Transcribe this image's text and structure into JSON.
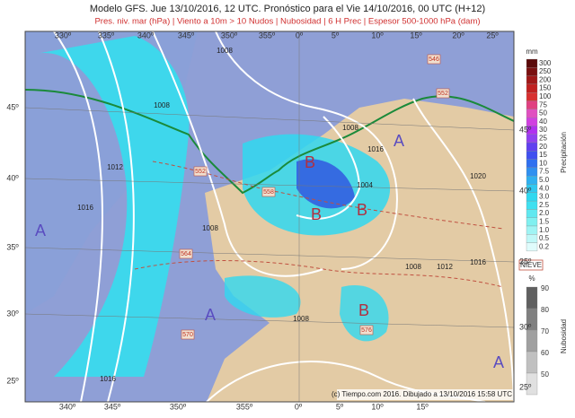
{
  "header": {
    "title": "Modelo GFS. Jue 13/10/2016, 12 UTC. Pronóstico para el Vie 14/10/2016, 00 UTC (H+12)",
    "subtitle": "Pres. niv. mar (hPa) | Viento a 10m > 10 Nudos | Nubosidad | 6 H Prec | Espesor 500-1000 hPa (dam)"
  },
  "map": {
    "top_longitudes": [
      "330º",
      "335º",
      "340º",
      "345º",
      "350º",
      "355º",
      "0º",
      "5º",
      "10º",
      "15º",
      "20º",
      "25º"
    ],
    "bottom_longitudes": [
      "340º",
      "345º",
      "350º",
      "355º",
      "0º",
      "5º",
      "10º",
      "15º"
    ],
    "left_latitudes": [
      "45º",
      "40º",
      "35º",
      "30º",
      "25º"
    ],
    "right_latitudes": [
      "45º",
      "40º",
      "35º",
      "30º",
      "25º"
    ],
    "isobar_labels": [
      "1008",
      "1008",
      "1012",
      "1016",
      "1008",
      "1016",
      "1004",
      "1008",
      "1020",
      "1008",
      "1012",
      "1016",
      "1008",
      "1016"
    ],
    "thickness_labels": [
      "546",
      "552",
      "552",
      "558",
      "564",
      "576",
      "570"
    ],
    "pressure_centers": [
      "A",
      "A",
      "A",
      "A",
      "B",
      "B",
      "B",
      "B"
    ]
  },
  "legend": {
    "precip_unit": "mm",
    "precip_title": "Precipitación",
    "precip_levels": [
      "300",
      "250",
      "200",
      "150",
      "100",
      "75",
      "50",
      "40",
      "30",
      "25",
      "20",
      "15",
      "10",
      "7.5",
      "5.0",
      "4.0",
      "3.0",
      "2.5",
      "2.0",
      "1.5",
      "1.0",
      "0.5",
      "0.2"
    ],
    "snow_label": "NIEVE",
    "cloud_unit": "%",
    "cloud_title": "Nubosidad",
    "cloud_levels": [
      "90",
      "80",
      "70",
      "60",
      "50"
    ]
  },
  "footer": {
    "credit": "(c) Tiempo.com 2016. Dibujado a 13/10/2016 15:58 UTC"
  }
}
